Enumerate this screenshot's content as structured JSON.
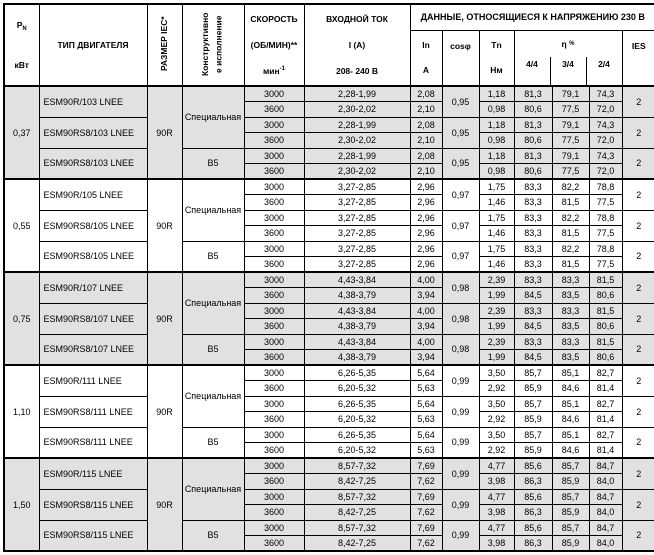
{
  "header": {
    "power": {
      "symbol": "P",
      "sub": "N",
      "unit": "кВт"
    },
    "motor_type": "ТИП ДВИГАТЕЛЯ",
    "iec_size": "РАЗМЕР IEC*",
    "mounting": {
      "line1": "Конструктивно",
      "line2": "е исполнение"
    },
    "speed": {
      "line1": "СКОРОСТЬ",
      "line2": "(ОБ/МИН)**",
      "unit": "мин",
      "unit_sup": "-1"
    },
    "input": {
      "line1": "ВХОДНОЙ ТОК",
      "line2": "I (A)",
      "line3": "208- 240 В"
    },
    "voltage_data": "ДАННЫЕ, ОТНОСЯЩИЕСЯ К НАПРЯЖЕНИЮ 230 В",
    "in_col": {
      "line1": "In",
      "line2": "A"
    },
    "cos_col": {
      "base": "cos",
      "phi": "φ"
    },
    "tn_col": {
      "line1": "Tn",
      "line2": "Нм"
    },
    "eta": {
      "symbol": "η",
      "pct": "%",
      "subs": [
        "4/4",
        "3/4",
        "2/4"
      ]
    },
    "ies": "IES"
  },
  "colors": {
    "shade": "#e1e1e1",
    "border": "#000000"
  },
  "blocks": [
    {
      "power": "0,37",
      "size": "90R",
      "motors": [
        {
          "name": "ESM90R/103 LNEE",
          "mount": "Специальная",
          "mount_span": 4,
          "cos": "0,95",
          "ies": "2",
          "rows": [
            {
              "speed": "3000",
              "input": "2,28-1,99",
              "in": "2,08",
              "tn": "1,18",
              "eta": [
                "81,3",
                "79,1",
                "74,3"
              ]
            },
            {
              "speed": "3600",
              "input": "2,30-2,02",
              "in": "2,10",
              "tn": "0,98",
              "eta": [
                "80,6",
                "77,5",
                "72,0"
              ]
            }
          ]
        },
        {
          "name": "ESM90RS8/103 LNEE",
          "mount": null,
          "cos": "0,95",
          "ies": "2",
          "rows": [
            {
              "speed": "3000",
              "input": "2,28-1,99",
              "in": "2,08",
              "tn": "1,18",
              "eta": [
                "81,3",
                "79,1",
                "74,3"
              ]
            },
            {
              "speed": "3600",
              "input": "2,30-2,02",
              "in": "2,10",
              "tn": "0,98",
              "eta": [
                "80,6",
                "77,5",
                "72,0"
              ]
            }
          ]
        },
        {
          "name": "ESM90RS8/103 LNEE",
          "mount": "B5",
          "mount_span": 2,
          "cos": "0,95",
          "ies": "2",
          "rows": [
            {
              "speed": "3000",
              "input": "2,28-1,99",
              "in": "2,08",
              "tn": "1,18",
              "eta": [
                "81,3",
                "79,1",
                "74,3"
              ]
            },
            {
              "speed": "3600",
              "input": "2,30-2,02",
              "in": "2,10",
              "tn": "0,98",
              "eta": [
                "80,6",
                "77,5",
                "72,0"
              ]
            }
          ]
        }
      ]
    },
    {
      "power": "0,55",
      "size": "90R",
      "motors": [
        {
          "name": "ESM90R/105 LNEE",
          "mount": "Специальная",
          "mount_span": 4,
          "cos": "0,97",
          "ies": "2",
          "rows": [
            {
              "speed": "3000",
              "input": "3,27-2,85",
              "in": "2,96",
              "tn": "1,75",
              "eta": [
                "83,3",
                "82,2",
                "78,8"
              ]
            },
            {
              "speed": "3600",
              "input": "3,27-2,85",
              "in": "2,96",
              "tn": "1,46",
              "eta": [
                "83,3",
                "81,5",
                "77,5"
              ]
            }
          ]
        },
        {
          "name": "ESM90RS8/105 LNEE",
          "mount": null,
          "cos": "0,97",
          "ies": "2",
          "rows": [
            {
              "speed": "3000",
              "input": "3,27-2,85",
              "in": "2,96",
              "tn": "1,75",
              "eta": [
                "83,3",
                "82,2",
                "78,8"
              ]
            },
            {
              "speed": "3600",
              "input": "3,27-2,85",
              "in": "2,96",
              "tn": "1,46",
              "eta": [
                "83,3",
                "81,5",
                "77,5"
              ]
            }
          ]
        },
        {
          "name": "ESM90RS8/105 LNEE",
          "mount": "B5",
          "mount_span": 2,
          "cos": "0,97",
          "ies": "2",
          "rows": [
            {
              "speed": "3000",
              "input": "3,27-2,85",
              "in": "2,96",
              "tn": "1,75",
              "eta": [
                "83,3",
                "82,2",
                "78,8"
              ]
            },
            {
              "speed": "3600",
              "input": "3,27-2,85",
              "in": "2,96",
              "tn": "1,46",
              "eta": [
                "83,3",
                "81,5",
                "77,5"
              ]
            }
          ]
        }
      ]
    },
    {
      "power": "0,75",
      "size": "90R",
      "motors": [
        {
          "name": "ESM90R/107 LNEE",
          "mount": "Специальная",
          "mount_span": 4,
          "cos": "0,98",
          "ies": "2",
          "rows": [
            {
              "speed": "3000",
              "input": "4,43-3,84",
              "in": "4,00",
              "tn": "2,39",
              "eta": [
                "83,3",
                "83,3",
                "81,5"
              ]
            },
            {
              "speed": "3600",
              "input": "4,38-3,79",
              "in": "3,94",
              "tn": "1,99",
              "eta": [
                "84,5",
                "83,5",
                "80,6"
              ]
            }
          ]
        },
        {
          "name": "ESM90RS8/107 LNEE",
          "mount": null,
          "cos": "0,98",
          "ies": "2",
          "rows": [
            {
              "speed": "3000",
              "input": "4,43-3,84",
              "in": "4,00",
              "tn": "2,39",
              "eta": [
                "83,3",
                "83,3",
                "81,5"
              ]
            },
            {
              "speed": "3600",
              "input": "4,38-3,79",
              "in": "3,94",
              "tn": "1,99",
              "eta": [
                "84,5",
                "83,5",
                "80,6"
              ]
            }
          ]
        },
        {
          "name": "ESM90RS8/107 LNEE",
          "mount": "B5",
          "mount_span": 2,
          "cos": "0,98",
          "ies": "2",
          "rows": [
            {
              "speed": "3000",
              "input": "4,43-3,84",
              "in": "4,00",
              "tn": "2,39",
              "eta": [
                "83,3",
                "83,3",
                "81,5"
              ]
            },
            {
              "speed": "3600",
              "input": "4,38-3,79",
              "in": "3,94",
              "tn": "1,99",
              "eta": [
                "84,5",
                "83,5",
                "80,6"
              ]
            }
          ]
        }
      ]
    },
    {
      "power": "1,10",
      "size": "90R",
      "motors": [
        {
          "name": "ESM90R/111 LNEE",
          "mount": "Специальная",
          "mount_span": 4,
          "cos": "0,99",
          "ies": "2",
          "rows": [
            {
              "speed": "3000",
              "input": "6,26-5,35",
              "in": "5,64",
              "tn": "3,50",
              "eta": [
                "85,7",
                "85,1",
                "82,7"
              ]
            },
            {
              "speed": "3600",
              "input": "6,20-5,32",
              "in": "5,63",
              "tn": "2,92",
              "eta": [
                "85,9",
                "84,6",
                "81,4"
              ]
            }
          ]
        },
        {
          "name": "ESM90RS8/111 LNEE",
          "mount": null,
          "cos": "0,99",
          "ies": "2",
          "rows": [
            {
              "speed": "3000",
              "input": "6,26-5,35",
              "in": "5,64",
              "tn": "3,50",
              "eta": [
                "85,7",
                "85,1",
                "82,7"
              ]
            },
            {
              "speed": "3600",
              "input": "6,20-5,32",
              "in": "5,63",
              "tn": "2,92",
              "eta": [
                "85,9",
                "84,6",
                "81,4"
              ]
            }
          ]
        },
        {
          "name": "ESM90RS8/111 LNEE",
          "mount": "B5",
          "mount_span": 2,
          "cos": "0,99",
          "ies": "2",
          "rows": [
            {
              "speed": "3000",
              "input": "6,26-5,35",
              "in": "5,64",
              "tn": "3,50",
              "eta": [
                "85,7",
                "85,1",
                "82,7"
              ]
            },
            {
              "speed": "3600",
              "input": "6,20-5,32",
              "in": "5,63",
              "tn": "2,92",
              "eta": [
                "85,9",
                "84,6",
                "81,4"
              ]
            }
          ]
        }
      ]
    },
    {
      "power": "1,50",
      "size": "90R",
      "motors": [
        {
          "name": "ESM90R/115 LNEE",
          "mount": "Специальная",
          "mount_span": 4,
          "cos": "0,99",
          "ies": "2",
          "rows": [
            {
              "speed": "3000",
              "input": "8,57-7,32",
              "in": "7,69",
              "tn": "4,77",
              "eta": [
                "85,6",
                "85,7",
                "84,7"
              ]
            },
            {
              "speed": "3600",
              "input": "8,42-7,25",
              "in": "7,62",
              "tn": "3,98",
              "eta": [
                "86,3",
                "85,9",
                "84,0"
              ]
            }
          ]
        },
        {
          "name": "ESM90RS8/115 LNEE",
          "mount": null,
          "cos": "0,99",
          "ies": "2",
          "rows": [
            {
              "speed": "3000",
              "input": "8,57-7,32",
              "in": "7,69",
              "tn": "4,77",
              "eta": [
                "85,6",
                "85,7",
                "84,7"
              ]
            },
            {
              "speed": "3600",
              "input": "8,42-7,25",
              "in": "7,62",
              "tn": "3,98",
              "eta": [
                "86,3",
                "85,9",
                "84,0"
              ]
            }
          ]
        },
        {
          "name": "ESM90RS8/115 LNEE",
          "mount": "B5",
          "mount_span": 2,
          "cos": "0,99",
          "ies": "2",
          "rows": [
            {
              "speed": "3000",
              "input": "8,57-7,32",
              "in": "7,69",
              "tn": "4,77",
              "eta": [
                "85,6",
                "85,7",
                "84,7"
              ]
            },
            {
              "speed": "3600",
              "input": "8,42-7,25",
              "in": "7,62",
              "tn": "3,98",
              "eta": [
                "86,3",
                "85,9",
                "84,0"
              ]
            }
          ]
        }
      ]
    }
  ]
}
